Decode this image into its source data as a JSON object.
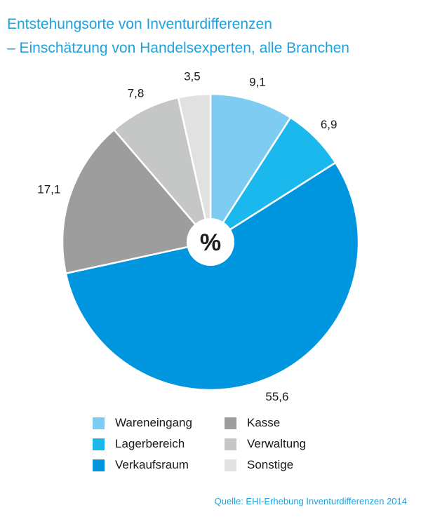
{
  "title_line1": "Entstehungsorte von Inventurdifferenzen",
  "title_line2": "– Einschätzung von Handelsexperten, alle Branchen",
  "center_label": "%",
  "source": "Quelle: EHI-Erhebung Inventurdifferenzen 2014",
  "chart_data": {
    "type": "pie",
    "title": "Entstehungsorte von Inventurdifferenzen",
    "subtitle": "– Einschätzung von Handelsexperten, alle Branchen",
    "unit": "%",
    "slices": [
      {
        "label": "Wareneingang",
        "value": 9.1,
        "display": "9,1",
        "color": "#7fccf2"
      },
      {
        "label": "Lagerbereich",
        "value": 6.9,
        "display": "6,9",
        "color": "#1ab8ec"
      },
      {
        "label": "Verkaufsraum",
        "value": 55.6,
        "display": "55,6",
        "color": "#0096df"
      },
      {
        "label": "Kasse",
        "value": 17.1,
        "display": "17,1",
        "color": "#9d9d9d"
      },
      {
        "label": "Verwaltung",
        "value": 7.8,
        "display": "7,8",
        "color": "#c5c6c6"
      },
      {
        "label": "Sonstige",
        "value": 3.5,
        "display": "3,5",
        "color": "#e1e1e2"
      }
    ],
    "legend_order": [
      "Wareneingang",
      "Kasse",
      "Lagerbereich",
      "Verwaltung",
      "Verkaufsraum",
      "Sonstige"
    ],
    "legend_position": "bottom"
  }
}
